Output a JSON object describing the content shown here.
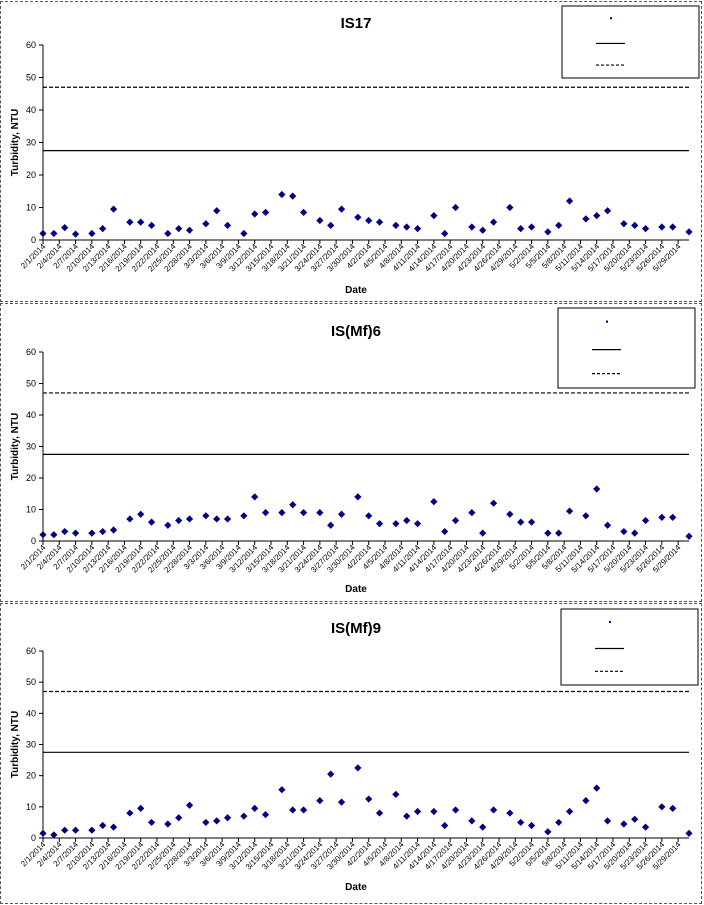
{
  "chart_data": [
    {
      "type": "scatter",
      "title": "IS17",
      "xlabel": "Date",
      "ylabel": "Turbidity, NTU",
      "ylim": [
        0,
        60
      ],
      "yticks": [
        0,
        10,
        20,
        30,
        40,
        50,
        60
      ],
      "xlim": [
        "2014-02-01",
        "2014-05-31"
      ],
      "xtick_labels": [
        "2/1/2014",
        "2/4/2014",
        "2/7/2014",
        "2/10/2014",
        "2/13/2014",
        "2/16/2014",
        "2/19/2014",
        "2/22/2014",
        "2/25/2014",
        "2/28/2014",
        "3/3/2014",
        "3/6/2014",
        "3/9/2014",
        "3/12/2014",
        "3/15/2014",
        "3/18/2014",
        "3/21/2014",
        "3/24/2014",
        "3/27/2014",
        "3/30/2014",
        "4/2/2014",
        "4/5/2014",
        "4/8/2014",
        "4/11/2014",
        "4/14/2014",
        "4/17/2014",
        "4/20/2014",
        "4/23/2014",
        "4/26/2014",
        "4/29/2014",
        "5/2/2014",
        "5/5/2014",
        "5/8/2014",
        "5/11/2014",
        "5/14/2014",
        "5/17/2014",
        "5/20/2014",
        "5/23/2014",
        "5/26/2014",
        "5/29/2014"
      ],
      "grid": false,
      "legend_position": "top-right",
      "color": "#000080",
      "series": [
        {
          "points": [
            [
              "2014-02-01",
              2.0
            ],
            [
              "2014-02-03",
              2.0
            ],
            [
              "2014-02-05",
              3.8
            ],
            [
              "2014-02-07",
              1.8
            ],
            [
              "2014-02-10",
              2.0
            ],
            [
              "2014-02-12",
              3.5
            ],
            [
              "2014-02-14",
              9.5
            ],
            [
              "2014-02-17",
              5.5
            ],
            [
              "2014-02-19",
              5.5
            ],
            [
              "2014-02-21",
              4.5
            ],
            [
              "2014-02-24",
              2.0
            ],
            [
              "2014-02-26",
              3.5
            ],
            [
              "2014-02-28",
              3.0
            ],
            [
              "2014-03-03",
              5.0
            ],
            [
              "2014-03-05",
              9.0
            ],
            [
              "2014-03-07",
              4.5
            ],
            [
              "2014-03-10",
              2.0
            ],
            [
              "2014-03-12",
              8.0
            ],
            [
              "2014-03-14",
              8.5
            ],
            [
              "2014-03-17",
              14.0
            ],
            [
              "2014-03-19",
              13.5
            ],
            [
              "2014-03-21",
              8.5
            ],
            [
              "2014-03-24",
              6.0
            ],
            [
              "2014-03-26",
              4.5
            ],
            [
              "2014-03-28",
              9.5
            ],
            [
              "2014-03-31",
              7.0
            ],
            [
              "2014-04-02",
              6.0
            ],
            [
              "2014-04-04",
              5.5
            ],
            [
              "2014-04-07",
              4.5
            ],
            [
              "2014-04-09",
              4.0
            ],
            [
              "2014-04-11",
              3.5
            ],
            [
              "2014-04-14",
              7.5
            ],
            [
              "2014-04-16",
              2.0
            ],
            [
              "2014-04-18",
              10.0
            ],
            [
              "2014-04-21",
              4.0
            ],
            [
              "2014-04-23",
              3.0
            ],
            [
              "2014-04-25",
              5.5
            ],
            [
              "2014-04-28",
              10.0
            ],
            [
              "2014-04-30",
              3.5
            ],
            [
              "2014-05-02",
              4.0
            ],
            [
              "2014-05-05",
              2.5
            ],
            [
              "2014-05-07",
              4.5
            ],
            [
              "2014-05-09",
              12.0
            ],
            [
              "2014-05-12",
              6.5
            ],
            [
              "2014-05-14",
              7.5
            ],
            [
              "2014-05-16",
              9.0
            ],
            [
              "2014-05-19",
              5.0
            ],
            [
              "2014-05-21",
              4.5
            ],
            [
              "2014-05-23",
              3.5
            ],
            [
              "2014-05-26",
              4.0
            ],
            [
              "2014-05-28",
              4.0
            ],
            [
              "2014-05-31",
              2.5
            ]
          ]
        }
      ],
      "reference_lines": [
        {
          "value": 27.5,
          "style": "solid"
        },
        {
          "value": 47.0,
          "style": "dashed"
        }
      ]
    },
    {
      "type": "scatter",
      "title": "IS(Mf)6",
      "xlabel": "Date",
      "ylabel": "Turbidity, NTU",
      "ylim": [
        0,
        60
      ],
      "yticks": [
        0,
        10,
        20,
        30,
        40,
        50,
        60
      ],
      "xlim": [
        "2014-02-01",
        "2014-05-31"
      ],
      "xtick_labels": [
        "2/1/2014",
        "2/4/2014",
        "2/7/2014",
        "2/10/2014",
        "2/13/2014",
        "2/16/2014",
        "2/19/2014",
        "2/22/2014",
        "2/25/2014",
        "2/28/2014",
        "3/3/2014",
        "3/6/2014",
        "3/9/2014",
        "3/12/2014",
        "3/15/2014",
        "3/18/2014",
        "3/21/2014",
        "3/24/2014",
        "3/27/2014",
        "3/30/2014",
        "4/2/2014",
        "4/5/2014",
        "4/8/2014",
        "4/11/2014",
        "4/14/2014",
        "4/17/2014",
        "4/20/2014",
        "4/23/2014",
        "4/26/2014",
        "4/29/2014",
        "5/2/2014",
        "5/5/2014",
        "5/8/2014",
        "5/11/2014",
        "5/14/2014",
        "5/17/2014",
        "5/20/2014",
        "5/23/2014",
        "5/26/2014",
        "5/29/2014"
      ],
      "grid": false,
      "legend_position": "top-right",
      "color": "#000080",
      "series": [
        {
          "points": [
            [
              "2014-02-01",
              2.0
            ],
            [
              "2014-02-03",
              2.0
            ],
            [
              "2014-02-05",
              3.0
            ],
            [
              "2014-02-07",
              2.5
            ],
            [
              "2014-02-10",
              2.5
            ],
            [
              "2014-02-12",
              3.0
            ],
            [
              "2014-02-14",
              3.5
            ],
            [
              "2014-02-17",
              7.0
            ],
            [
              "2014-02-19",
              8.5
            ],
            [
              "2014-02-21",
              6.0
            ],
            [
              "2014-02-24",
              5.0
            ],
            [
              "2014-02-26",
              6.5
            ],
            [
              "2014-02-28",
              7.0
            ],
            [
              "2014-03-03",
              8.0
            ],
            [
              "2014-03-05",
              7.0
            ],
            [
              "2014-03-07",
              7.0
            ],
            [
              "2014-03-10",
              8.0
            ],
            [
              "2014-03-12",
              14.0
            ],
            [
              "2014-03-14",
              9.0
            ],
            [
              "2014-03-17",
              9.0
            ],
            [
              "2014-03-19",
              11.5
            ],
            [
              "2014-03-21",
              9.0
            ],
            [
              "2014-03-24",
              9.0
            ],
            [
              "2014-03-26",
              5.0
            ],
            [
              "2014-03-28",
              8.5
            ],
            [
              "2014-03-31",
              14.0
            ],
            [
              "2014-04-02",
              8.0
            ],
            [
              "2014-04-04",
              5.5
            ],
            [
              "2014-04-07",
              5.5
            ],
            [
              "2014-04-09",
              6.5
            ],
            [
              "2014-04-11",
              5.5
            ],
            [
              "2014-04-14",
              12.5
            ],
            [
              "2014-04-16",
              3.0
            ],
            [
              "2014-04-18",
              6.5
            ],
            [
              "2014-04-21",
              9.0
            ],
            [
              "2014-04-23",
              2.5
            ],
            [
              "2014-04-25",
              12.0
            ],
            [
              "2014-04-28",
              8.5
            ],
            [
              "2014-04-30",
              6.0
            ],
            [
              "2014-05-02",
              6.0
            ],
            [
              "2014-05-05",
              2.5
            ],
            [
              "2014-05-07",
              2.5
            ],
            [
              "2014-05-09",
              9.5
            ],
            [
              "2014-05-12",
              8.0
            ],
            [
              "2014-05-14",
              16.5
            ],
            [
              "2014-05-16",
              5.0
            ],
            [
              "2014-05-19",
              3.0
            ],
            [
              "2014-05-21",
              2.5
            ],
            [
              "2014-05-23",
              6.5
            ],
            [
              "2014-05-26",
              7.5
            ],
            [
              "2014-05-28",
              7.5
            ],
            [
              "2014-05-31",
              1.5
            ]
          ]
        }
      ],
      "reference_lines": [
        {
          "value": 27.5,
          "style": "solid"
        },
        {
          "value": 47.0,
          "style": "dashed"
        }
      ]
    },
    {
      "type": "scatter",
      "title": "IS(Mf)9",
      "xlabel": "Date",
      "ylabel": "Turbidity, NTU",
      "ylim": [
        0,
        60
      ],
      "yticks": [
        0,
        10,
        20,
        30,
        40,
        50,
        60
      ],
      "xlim": [
        "2014-02-01",
        "2014-05-31"
      ],
      "xtick_labels": [
        "2/1/2014",
        "2/4/2014",
        "2/7/2014",
        "2/10/2014",
        "2/13/2014",
        "2/16/2014",
        "2/19/2014",
        "2/22/2014",
        "2/25/2014",
        "2/28/2014",
        "3/3/2014",
        "3/6/2014",
        "3/9/2014",
        "3/12/2014",
        "3/15/2014",
        "3/18/2014",
        "3/21/2014",
        "3/24/2014",
        "3/27/2014",
        "3/30/2014",
        "4/2/2014",
        "4/5/2014",
        "4/8/2014",
        "4/11/2014",
        "4/14/2014",
        "4/17/2014",
        "4/20/2014",
        "4/23/2014",
        "4/26/2014",
        "4/29/2014",
        "5/2/2014",
        "5/5/2014",
        "5/8/2014",
        "5/11/2014",
        "5/14/2014",
        "5/17/2014",
        "5/20/2014",
        "5/23/2014",
        "5/26/2014",
        "5/29/2014"
      ],
      "grid": false,
      "legend_position": "top-right",
      "color": "#000080",
      "series": [
        {
          "points": [
            [
              "2014-02-01",
              1.5
            ],
            [
              "2014-02-03",
              1.0
            ],
            [
              "2014-02-05",
              2.5
            ],
            [
              "2014-02-07",
              2.5
            ],
            [
              "2014-02-10",
              2.5
            ],
            [
              "2014-02-12",
              4.0
            ],
            [
              "2014-02-14",
              3.5
            ],
            [
              "2014-02-17",
              8.0
            ],
            [
              "2014-02-19",
              9.5
            ],
            [
              "2014-02-21",
              5.0
            ],
            [
              "2014-02-24",
              4.5
            ],
            [
              "2014-02-26",
              6.5
            ],
            [
              "2014-02-28",
              10.5
            ],
            [
              "2014-03-03",
              5.0
            ],
            [
              "2014-03-05",
              5.5
            ],
            [
              "2014-03-07",
              6.5
            ],
            [
              "2014-03-10",
              7.0
            ],
            [
              "2014-03-12",
              9.5
            ],
            [
              "2014-03-14",
              7.5
            ],
            [
              "2014-03-17",
              15.5
            ],
            [
              "2014-03-19",
              9.0
            ],
            [
              "2014-03-21",
              9.0
            ],
            [
              "2014-03-24",
              12.0
            ],
            [
              "2014-03-26",
              20.5
            ],
            [
              "2014-03-28",
              11.5
            ],
            [
              "2014-03-31",
              22.5
            ],
            [
              "2014-04-02",
              12.5
            ],
            [
              "2014-04-04",
              8.0
            ],
            [
              "2014-04-07",
              14.0
            ],
            [
              "2014-04-09",
              7.0
            ],
            [
              "2014-04-11",
              8.5
            ],
            [
              "2014-04-14",
              8.5
            ],
            [
              "2014-04-16",
              4.0
            ],
            [
              "2014-04-18",
              9.0
            ],
            [
              "2014-04-21",
              5.5
            ],
            [
              "2014-04-23",
              3.5
            ],
            [
              "2014-04-25",
              9.0
            ],
            [
              "2014-04-28",
              8.0
            ],
            [
              "2014-04-30",
              5.0
            ],
            [
              "2014-05-02",
              4.0
            ],
            [
              "2014-05-05",
              2.0
            ],
            [
              "2014-05-07",
              5.0
            ],
            [
              "2014-05-09",
              8.5
            ],
            [
              "2014-05-12",
              12.0
            ],
            [
              "2014-05-14",
              16.0
            ],
            [
              "2014-05-16",
              5.5
            ],
            [
              "2014-05-19",
              4.5
            ],
            [
              "2014-05-21",
              6.0
            ],
            [
              "2014-05-23",
              3.5
            ],
            [
              "2014-05-26",
              10.0
            ],
            [
              "2014-05-28",
              9.5
            ],
            [
              "2014-05-31",
              1.5
            ]
          ]
        }
      ],
      "reference_lines": [
        {
          "value": 27.5,
          "style": "solid"
        },
        {
          "value": 47.0,
          "style": "dashed"
        }
      ]
    }
  ]
}
